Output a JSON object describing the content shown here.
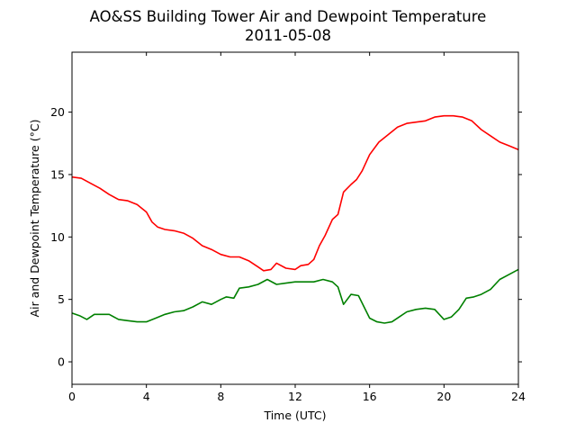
{
  "chart_data": {
    "type": "line",
    "title": "AO&SS Building Tower Air and Dewpoint Temperature",
    "subtitle": "2011-05-08",
    "xlabel": "Time (UTC)",
    "ylabel": "Air and Dewpoint Temperature (°C)",
    "xlim": [
      0,
      24
    ],
    "ylim": [
      -1.8,
      24.8
    ],
    "xticks": [
      0,
      4,
      8,
      12,
      16,
      20,
      24
    ],
    "yticks": [
      0,
      5,
      10,
      15,
      20
    ],
    "grid": false,
    "legend": "none",
    "series": [
      {
        "color": "#ff0000",
        "x": [
          0,
          0.5,
          1,
          1.5,
          2,
          2.5,
          3,
          3.5,
          4,
          4.3,
          4.6,
          5,
          5.5,
          6,
          6.5,
          7,
          7.5,
          8,
          8.5,
          9,
          9.5,
          10,
          10.3,
          10.7,
          11,
          11.5,
          12,
          12.3,
          12.7,
          13,
          13.3,
          13.6,
          14,
          14.3,
          14.6,
          15,
          15.3,
          15.6,
          16,
          16.5,
          17,
          17.5,
          18,
          18.5,
          19,
          19.5,
          20,
          20.5,
          21,
          21.5,
          22,
          22.5,
          23,
          23.5,
          24
        ],
        "y": [
          14.8,
          14.7,
          14.3,
          13.9,
          13.4,
          13.0,
          12.9,
          12.6,
          12.0,
          11.2,
          10.8,
          10.6,
          10.5,
          10.3,
          9.9,
          9.3,
          9.0,
          8.6,
          8.4,
          8.4,
          8.1,
          7.6,
          7.3,
          7.4,
          7.9,
          7.5,
          7.4,
          7.7,
          7.8,
          8.2,
          9.3,
          10.1,
          11.4,
          11.8,
          13.6,
          14.2,
          14.6,
          15.3,
          16.6,
          17.6,
          18.2,
          18.8,
          19.1,
          19.2,
          19.3,
          19.6,
          19.7,
          19.7,
          19.6,
          19.3,
          18.6,
          18.1,
          17.6,
          17.3,
          17.0
        ]
      },
      {
        "color": "#008000",
        "x": [
          0,
          0.4,
          0.8,
          1.2,
          1.6,
          2,
          2.5,
          3,
          3.5,
          4,
          4.5,
          5,
          5.5,
          6,
          6.5,
          7,
          7.5,
          8,
          8.3,
          8.7,
          9,
          9.5,
          10,
          10.5,
          11,
          11.5,
          12,
          12.5,
          13,
          13.5,
          14,
          14.3,
          14.6,
          15,
          15.4,
          15.7,
          16,
          16.4,
          16.8,
          17.2,
          17.6,
          18,
          18.5,
          19,
          19.5,
          20,
          20.4,
          20.8,
          21.2,
          21.6,
          22,
          22.5,
          23,
          23.5,
          24
        ],
        "y": [
          3.9,
          3.7,
          3.4,
          3.8,
          3.8,
          3.8,
          3.4,
          3.3,
          3.2,
          3.2,
          3.5,
          3.8,
          4.0,
          4.1,
          4.4,
          4.8,
          4.6,
          5.0,
          5.2,
          5.1,
          5.9,
          6.0,
          6.2,
          6.6,
          6.2,
          6.3,
          6.4,
          6.4,
          6.4,
          6.6,
          6.4,
          6.0,
          4.6,
          5.4,
          5.3,
          4.4,
          3.5,
          3.2,
          3.1,
          3.2,
          3.6,
          4.0,
          4.2,
          4.3,
          4.2,
          3.4,
          3.6,
          4.2,
          5.1,
          5.2,
          5.4,
          5.8,
          6.6,
          7.0,
          7.4
        ]
      }
    ]
  }
}
